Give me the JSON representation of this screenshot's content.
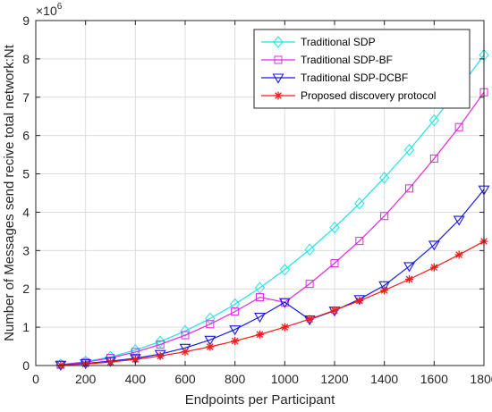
{
  "chart_data": {
    "type": "line",
    "xlabel": "Endpoints per Participant",
    "ylabel": "Number of Messages send recive total network:Nt",
    "y_exponent_label": "×10",
    "y_exponent": "6",
    "xlim": [
      0,
      1800
    ],
    "ylim": [
      0,
      9
    ],
    "x_ticks": [
      "0",
      "200",
      "400",
      "600",
      "800",
      "1000",
      "1200",
      "1400",
      "1600",
      "1800"
    ],
    "y_ticks": [
      "0",
      "1",
      "2",
      "3",
      "4",
      "5",
      "6",
      "7",
      "8",
      "9"
    ],
    "grid": true,
    "legend_position": "top-right",
    "x": [
      100,
      200,
      300,
      400,
      500,
      600,
      700,
      800,
      900,
      1000,
      1100,
      1200,
      1300,
      1400,
      1500,
      1600,
      1700,
      1800
    ],
    "series": [
      {
        "name": "Traditional SDP",
        "color": "#1fe3e3",
        "marker": "diamond",
        "values": [
          0.025,
          0.1,
          0.225,
          0.4,
          0.625,
          0.9,
          1.225,
          1.6,
          2.025,
          2.5,
          3.025,
          3.6,
          4.225,
          4.9,
          5.625,
          6.4,
          7.225,
          8.1
        ]
      },
      {
        "name": "Traditional SDP-BF",
        "color": "#e028e0",
        "marker": "square",
        "values": [
          0.022,
          0.088,
          0.198,
          0.352,
          0.55,
          0.792,
          1.078,
          1.408,
          1.782,
          1.65,
          2.13,
          2.67,
          3.25,
          3.9,
          4.62,
          5.4,
          6.22,
          7.13
        ]
      },
      {
        "name": "Traditional SDP-DCBF",
        "color": "#1a1ae8",
        "marker": "triangle-down",
        "values": [
          0.016,
          0.056,
          0.113,
          0.19,
          0.298,
          0.46,
          0.67,
          0.94,
          1.27,
          1.65,
          1.2,
          1.43,
          1.73,
          2.09,
          2.59,
          3.15,
          3.8,
          4.59
        ]
      },
      {
        "name": "Proposed discovery protocol",
        "color": "#f21c1c",
        "marker": "star",
        "values": [
          0.01,
          0.04,
          0.09,
          0.16,
          0.25,
          0.36,
          0.49,
          0.64,
          0.81,
          1.0,
          1.21,
          1.44,
          1.69,
          1.96,
          2.25,
          2.56,
          2.89,
          3.24
        ]
      }
    ]
  }
}
